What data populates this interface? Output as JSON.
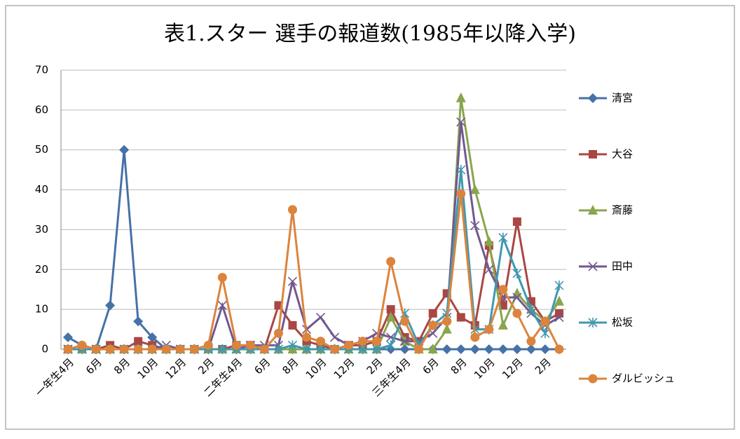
{
  "chart_data": {
    "type": "line",
    "title": "表1.スター 選手の報道数(1985年以降入学)",
    "categories": [
      "一年生4月",
      null,
      "6月",
      null,
      "8月",
      null,
      "10月",
      null,
      "12月",
      null,
      "2月",
      null,
      "二年生4月",
      null,
      "6月",
      null,
      "8月",
      null,
      "10月",
      null,
      "12月",
      null,
      "2月",
      null,
      "三年生4月",
      null,
      "6月",
      null,
      "8月",
      null,
      "10月",
      null,
      "12月",
      null,
      "2月",
      null
    ],
    "series": [
      {
        "name": "清宮",
        "color": "#4572a7",
        "marker": "diamond",
        "values": [
          3,
          1,
          0,
          11,
          50,
          7,
          3,
          0,
          0,
          0,
          0,
          0,
          0,
          0,
          0,
          0,
          0,
          0,
          0,
          0,
          0,
          0,
          0,
          0,
          0,
          0,
          0,
          0,
          0,
          0,
          0,
          0,
          0,
          0,
          0,
          0
        ]
      },
      {
        "name": "大谷",
        "color": "#aa4643",
        "marker": "square",
        "values": [
          0,
          0,
          0,
          1,
          0,
          2,
          1,
          0,
          0,
          0,
          0,
          0,
          1,
          1,
          0,
          11,
          6,
          2,
          1,
          0,
          1,
          1,
          2,
          10,
          3,
          2,
          9,
          14,
          8,
          6,
          26,
          11,
          32,
          12,
          7,
          9
        ]
      },
      {
        "name": "斎藤",
        "color": "#89a54e",
        "marker": "triangle",
        "values": [
          0,
          0,
          0,
          0,
          0,
          0,
          0,
          0,
          0,
          0,
          0,
          0,
          0,
          0,
          0,
          0,
          0,
          0,
          0,
          0,
          0,
          0,
          0,
          8,
          2,
          0,
          0,
          5,
          63,
          40,
          27,
          6,
          14,
          10,
          7,
          12
        ]
      },
      {
        "name": "田中",
        "color": "#71588f",
        "marker": "x",
        "values": [
          0,
          0,
          0,
          0,
          0,
          0,
          0,
          1,
          0,
          0,
          0,
          11,
          0,
          1,
          1,
          1,
          17,
          5,
          8,
          3,
          1,
          2,
          4,
          3,
          2,
          2,
          4,
          8,
          57,
          31,
          20,
          13,
          13,
          9,
          6,
          8
        ]
      },
      {
        "name": "松坂",
        "color": "#4198af",
        "marker": "star",
        "values": [
          0,
          0,
          0,
          0,
          0,
          0,
          0,
          0,
          0,
          0,
          0,
          0,
          0,
          0,
          0,
          0,
          1,
          0,
          0,
          0,
          0,
          0,
          0,
          1,
          9,
          1,
          6,
          9,
          45,
          5,
          5,
          28,
          19,
          10,
          4,
          16
        ]
      },
      {
        "name": "ダルビッシュ",
        "color": "#db843d",
        "marker": "circle",
        "values": [
          0,
          1,
          0,
          0,
          0,
          0,
          0,
          0,
          0,
          0,
          1,
          18,
          1,
          1,
          0,
          4,
          35,
          3,
          2,
          0,
          1,
          2,
          2,
          22,
          7,
          0,
          6,
          7,
          39,
          3,
          5,
          15,
          9,
          2,
          7,
          0
        ]
      }
    ],
    "ylim": [
      0,
      70
    ],
    "yticks": [
      0,
      10,
      20,
      30,
      40,
      50,
      60,
      70
    ],
    "grid": true,
    "legend": "right"
  }
}
